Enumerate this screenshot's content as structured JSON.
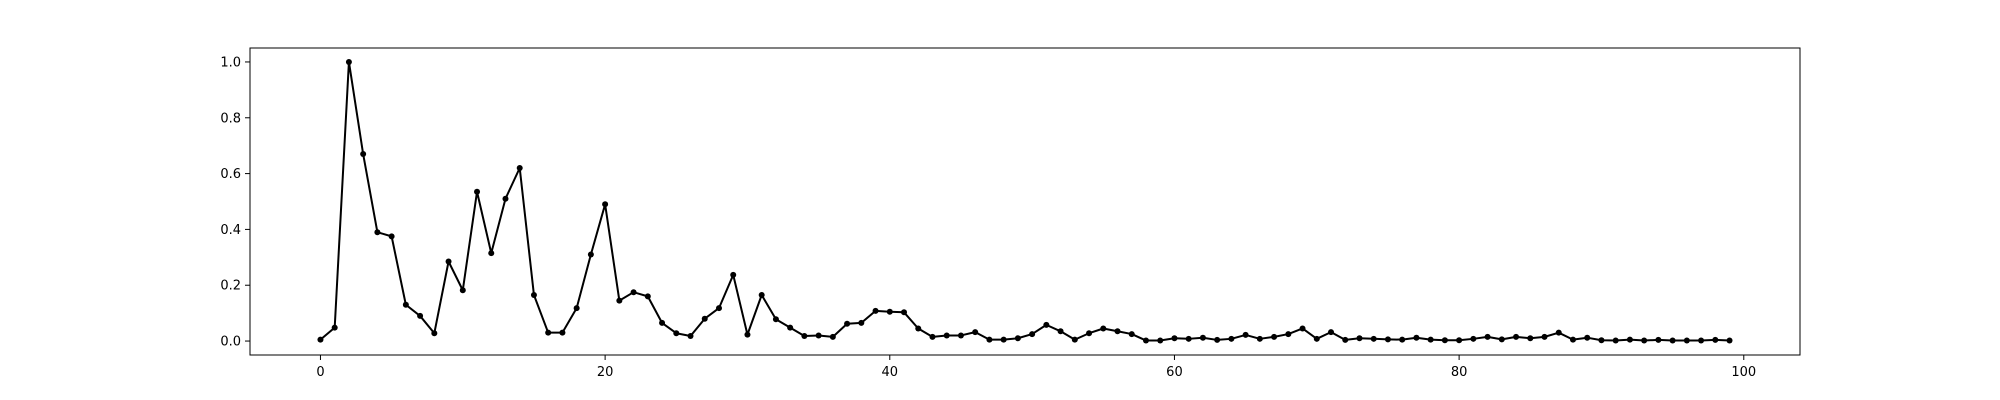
{
  "chart_data": {
    "type": "line",
    "title": "",
    "xlabel": "",
    "ylabel": "",
    "xlim": [
      -4.95,
      103.95
    ],
    "ylim": [
      -0.05,
      1.05
    ],
    "x_ticks": [
      0,
      20,
      40,
      60,
      80,
      100
    ],
    "x_tick_labels": [
      "0",
      "20",
      "40",
      "60",
      "80",
      "100"
    ],
    "y_ticks": [
      0.0,
      0.2,
      0.4,
      0.6,
      0.8,
      1.0
    ],
    "y_tick_labels": [
      "0.0",
      "0.2",
      "0.4",
      "0.6",
      "0.8",
      "1.0"
    ],
    "grid": false,
    "series": [
      {
        "color": "#000000",
        "marker": "circle",
        "x": [
          0,
          1,
          2,
          3,
          4,
          5,
          6,
          7,
          8,
          9,
          10,
          11,
          12,
          13,
          14,
          15,
          16,
          17,
          18,
          19,
          20,
          21,
          22,
          23,
          24,
          25,
          26,
          27,
          28,
          29,
          30,
          31,
          32,
          33,
          34,
          35,
          36,
          37,
          38,
          39,
          40,
          41,
          42,
          43,
          44,
          45,
          46,
          47,
          48,
          49,
          50,
          51,
          52,
          53,
          54,
          55,
          56,
          57,
          58,
          59,
          60,
          61,
          62,
          63,
          64,
          65,
          66,
          67,
          68,
          69,
          70,
          71,
          72,
          73,
          74,
          75,
          76,
          77,
          78,
          79,
          80,
          81,
          82,
          83,
          84,
          85,
          86,
          87,
          88,
          89,
          90,
          91,
          92,
          93,
          94,
          95,
          96,
          97,
          98,
          99
        ],
        "values": [
          0.005,
          0.048,
          1.0,
          0.67,
          0.39,
          0.375,
          0.13,
          0.09,
          0.028,
          0.285,
          0.182,
          0.535,
          0.315,
          0.51,
          0.62,
          0.165,
          0.03,
          0.03,
          0.118,
          0.31,
          0.49,
          0.145,
          0.175,
          0.16,
          0.065,
          0.028,
          0.018,
          0.08,
          0.118,
          0.237,
          0.023,
          0.165,
          0.078,
          0.048,
          0.018,
          0.02,
          0.015,
          0.062,
          0.065,
          0.108,
          0.105,
          0.103,
          0.045,
          0.015,
          0.02,
          0.02,
          0.032,
          0.005,
          0.005,
          0.01,
          0.025,
          0.058,
          0.035,
          0.005,
          0.028,
          0.045,
          0.035,
          0.025,
          0.002,
          0.002,
          0.01,
          0.008,
          0.012,
          0.004,
          0.008,
          0.022,
          0.008,
          0.015,
          0.025,
          0.045,
          0.008,
          0.032,
          0.004,
          0.01,
          0.008,
          0.006,
          0.005,
          0.012,
          0.005,
          0.003,
          0.003,
          0.008,
          0.015,
          0.006,
          0.015,
          0.01,
          0.015,
          0.03,
          0.005,
          0.012,
          0.003,
          0.002,
          0.005,
          0.002,
          0.004,
          0.002,
          0.002,
          0.002,
          0.004,
          0.002
        ]
      }
    ]
  }
}
